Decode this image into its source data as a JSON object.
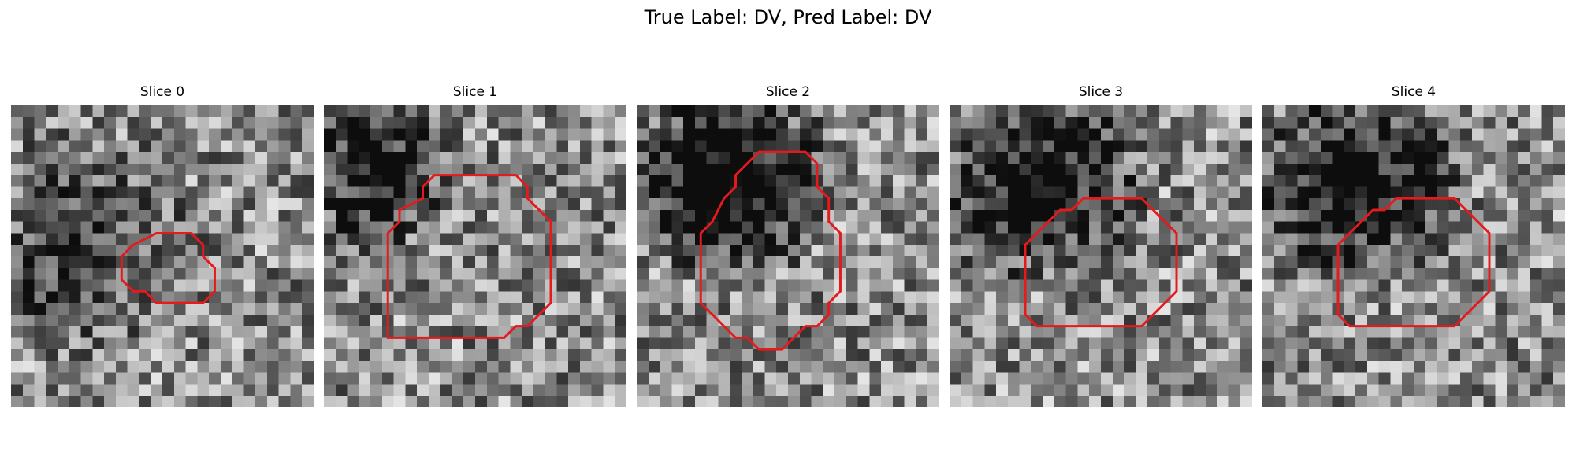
{
  "figure": {
    "title": "True Label: DV, Pred Label: DV",
    "contour_color": "#e41a1c"
  },
  "panels": [
    {
      "title": "Slice 0",
      "dark_region": [
        11,
        22,
        16,
        16,
        0.35
      ],
      "contour": [
        [
          13.5,
          11
        ],
        [
          15.5,
          11
        ],
        [
          16.5,
          12
        ],
        [
          16.5,
          13
        ],
        [
          17.5,
          14
        ],
        [
          17.5,
          16
        ],
        [
          16.5,
          17
        ],
        [
          12.5,
          17
        ],
        [
          11.5,
          16
        ],
        [
          10.5,
          16
        ],
        [
          9.5,
          15
        ],
        [
          9.5,
          13
        ],
        [
          10.5,
          12
        ],
        [
          12.5,
          11
        ]
      ],
      "seed": 11
    },
    {
      "title": "Slice 1",
      "dark_region": [
        8,
        10,
        11,
        12,
        0.55
      ],
      "contour": [
        [
          11.5,
          6
        ],
        [
          16.5,
          6
        ],
        [
          17.5,
          7
        ],
        [
          17.5,
          8
        ],
        [
          18.5,
          9
        ],
        [
          19.5,
          10
        ],
        [
          19.5,
          17
        ],
        [
          18.5,
          18
        ],
        [
          17.5,
          19
        ],
        [
          16.5,
          19
        ],
        [
          15.5,
          20
        ],
        [
          5.5,
          20
        ],
        [
          5.5,
          11
        ],
        [
          6.5,
          10
        ],
        [
          6.5,
          9
        ],
        [
          8.5,
          8
        ],
        [
          8.5,
          7
        ],
        [
          9.5,
          6
        ]
      ],
      "seed": 23
    },
    {
      "title": "Slice 2",
      "dark_region": [
        14,
        12,
        15,
        13,
        0.75
      ],
      "contour": [
        [
          10.5,
          4
        ],
        [
          14.5,
          4
        ],
        [
          15.5,
          5
        ],
        [
          15.5,
          7
        ],
        [
          16.5,
          8
        ],
        [
          16.5,
          10
        ],
        [
          17.5,
          11
        ],
        [
          17.5,
          16
        ],
        [
          16.5,
          17
        ],
        [
          16.5,
          18
        ],
        [
          15.5,
          19
        ],
        [
          14.5,
          19
        ],
        [
          12.5,
          21
        ],
        [
          10.5,
          21
        ],
        [
          9.5,
          20
        ],
        [
          8.5,
          20
        ],
        [
          7.5,
          19
        ],
        [
          6.5,
          18
        ],
        [
          5.5,
          17
        ],
        [
          5.5,
          11
        ],
        [
          6.5,
          10
        ],
        [
          7.5,
          8
        ],
        [
          8.5,
          7
        ],
        [
          8.5,
          6
        ],
        [
          9.5,
          5
        ]
      ],
      "seed": 37
    },
    {
      "title": "Slice 3",
      "dark_region": [
        14,
        12,
        15,
        14,
        0.6
      ],
      "contour": [
        [
          11.5,
          8
        ],
        [
          16.5,
          8
        ],
        [
          17.5,
          9
        ],
        [
          18.5,
          10
        ],
        [
          19.5,
          11
        ],
        [
          19.5,
          16
        ],
        [
          18.5,
          17
        ],
        [
          16.5,
          19
        ],
        [
          7.5,
          19
        ],
        [
          6.5,
          18
        ],
        [
          6.5,
          12
        ],
        [
          7.5,
          11
        ],
        [
          8.5,
          10
        ],
        [
          9.5,
          9
        ],
        [
          10.5,
          9
        ]
      ],
      "seed": 51
    },
    {
      "title": "Slice 4",
      "dark_region": [
        14,
        12,
        15,
        14,
        0.6
      ],
      "contour": [
        [
          11.5,
          8
        ],
        [
          16.5,
          8
        ],
        [
          17.5,
          9
        ],
        [
          18.5,
          10
        ],
        [
          19.5,
          11
        ],
        [
          19.5,
          16
        ],
        [
          18.5,
          17
        ],
        [
          16.5,
          19
        ],
        [
          7.5,
          19
        ],
        [
          6.5,
          18
        ],
        [
          6.5,
          12
        ],
        [
          7.5,
          11
        ],
        [
          8.5,
          10
        ],
        [
          9.5,
          9
        ],
        [
          10.5,
          9
        ]
      ],
      "seed": 52
    }
  ]
}
